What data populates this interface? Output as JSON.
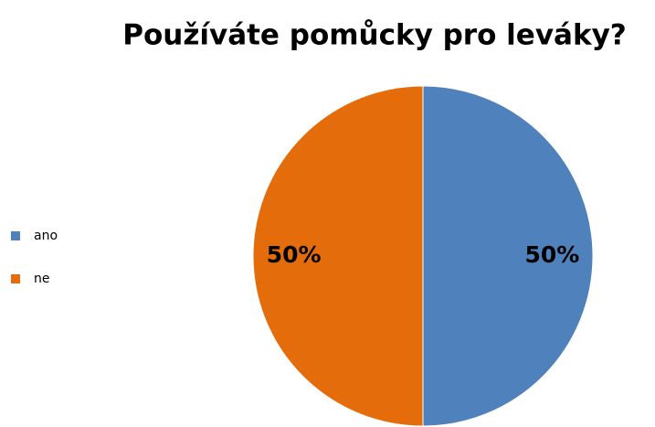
{
  "chart_data": {
    "type": "pie",
    "title": "Používáte pomůcky pro leváky?",
    "categories": [
      "ano",
      "ne"
    ],
    "values": [
      50,
      50
    ],
    "value_labels": [
      "50%",
      "50%"
    ],
    "colors": [
      "#4f81bd",
      "#e46c0a"
    ],
    "legend": "left"
  }
}
